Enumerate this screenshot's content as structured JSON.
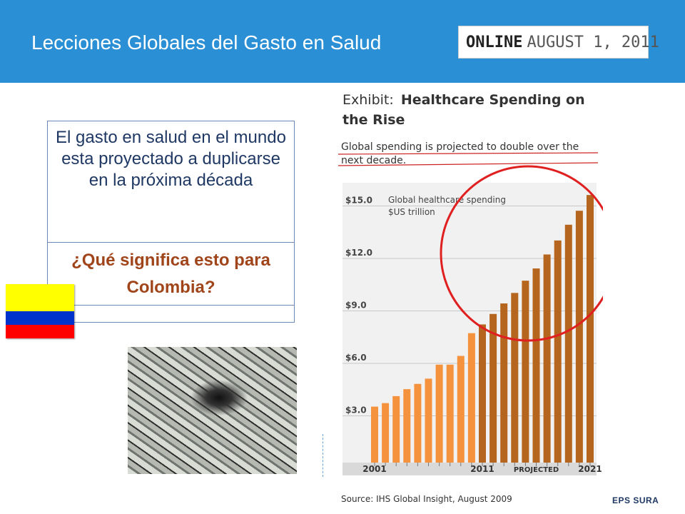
{
  "slide": {
    "title": "Lecciones Globales del Gasto en Salud",
    "badge": {
      "word": "ONLINE",
      "date": "AUGUST 1, 2011"
    },
    "statement": "El gasto en salud en el mundo esta proyectado a duplicarse en la próxima década",
    "question": "¿Qué significa esto para Colombia?",
    "footer": "EPS SURA",
    "colors": {
      "header": "#2a8fd4",
      "statement_text": "#1f3864",
      "question_text": "#a0441a"
    },
    "flag_colors": [
      "#ffff00",
      "#0033cc",
      "#ff0000"
    ],
    "image": "money-vortex-photo"
  },
  "chart_data": {
    "type": "bar",
    "title_prefix": "Exhibit:",
    "title": "Healthcare Spending on the Rise",
    "subtitle": "Global spending is projected to double over the next decade.",
    "annotation": "Global healthcare spending $US trillion",
    "ylabel": "",
    "xlabel": "",
    "ylim": [
      0,
      16
    ],
    "yticks": [
      "$3.0",
      "$6.0",
      "$9.0",
      "$12.0",
      "$15.0"
    ],
    "xtick_labels": [
      "2001",
      "2011",
      "PROJECTED",
      "2021"
    ],
    "categories": [
      "2001",
      "2002",
      "2003",
      "2004",
      "2005",
      "2006",
      "2007",
      "2008",
      "2009",
      "2010",
      "2011",
      "2012",
      "2013",
      "2014",
      "2015",
      "2016",
      "2017",
      "2018",
      "2019",
      "2020",
      "2021"
    ],
    "values": [
      3.2,
      3.4,
      3.8,
      4.2,
      4.5,
      4.8,
      5.6,
      5.6,
      6.1,
      7.4,
      7.9,
      8.5,
      9.1,
      9.7,
      10.4,
      11.1,
      11.9,
      12.7,
      13.6,
      14.4,
      15.3
    ],
    "projected_from": "2011",
    "source": "Source: IHS Global Insight, August 2009",
    "colors": {
      "actual": "#f5923e",
      "projected": "#b5651d",
      "highlight_circle": "#e02020",
      "underline": "#cc2222"
    }
  }
}
